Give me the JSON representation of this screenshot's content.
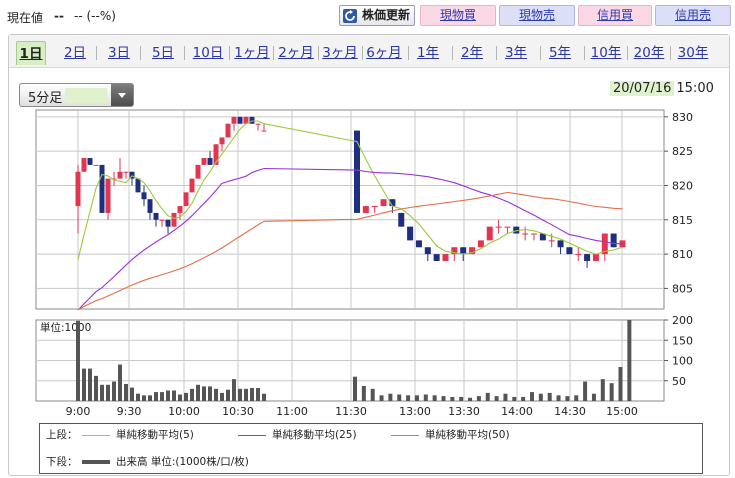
{
  "header": {
    "price_label": "現在値",
    "price_value": "--",
    "price_change": "-- (--%)",
    "buttons": {
      "update": "株価更新",
      "cash_buy": "現物買",
      "cash_sell": "現物売",
      "margin_buy": "信用買",
      "margin_sell": "信用売"
    },
    "colors": {
      "pink_button": "#fbd8e6",
      "blue_button": "#dcdff7",
      "link": "#2a3ab0"
    }
  },
  "tabs": [
    {
      "label": "1日",
      "active": true
    },
    {
      "label": "2日"
    },
    {
      "label": "3日"
    },
    {
      "label": "5日"
    },
    {
      "label": "10日"
    },
    {
      "label": "1ヶ月"
    },
    {
      "label": "2ヶ月"
    },
    {
      "label": "3ヶ月"
    },
    {
      "label": "6ヶ月"
    },
    {
      "label": "1年"
    },
    {
      "label": "2年"
    },
    {
      "label": "3年"
    },
    {
      "label": "5年"
    },
    {
      "label": "10年"
    },
    {
      "label": "20年"
    },
    {
      "label": "30年"
    }
  ],
  "interval_select": {
    "value": "5分足"
  },
  "as_of": {
    "date": "20/07/16",
    "time": "15:00"
  },
  "chart_data": {
    "type": "candlestick",
    "x_labels": [
      "9:00",
      "9:30",
      "10:00",
      "10:30",
      "11:00",
      "11:30",
      "13:00",
      "13:30",
      "14:00",
      "14:30",
      "15:00"
    ],
    "price_axis": {
      "ylim": [
        802,
        831
      ],
      "ticks": [
        805,
        810,
        815,
        820,
        825,
        830
      ]
    },
    "volume_axis": {
      "ylim": [
        0,
        200
      ],
      "ticks": [
        50,
        100,
        150,
        200
      ],
      "label": "単位:1000"
    },
    "colors": {
      "up": "#e3354f",
      "down": "#1f2f80",
      "ma5": "#9cc840",
      "ma25": "#9b30d8",
      "ma50": "#e0704a",
      "volume": "#555555",
      "grid": "#c8c8c8"
    },
    "candles_morning": [
      [
        817,
        822,
        813,
        823
      ],
      [
        822,
        824,
        822,
        824
      ],
      [
        824,
        823,
        823,
        824
      ],
      [
        823,
        823,
        823,
        823
      ],
      [
        823,
        816,
        816,
        823
      ],
      [
        816,
        821,
        815,
        821
      ],
      [
        821,
        821,
        820,
        822
      ],
      [
        821,
        822,
        821,
        824
      ],
      [
        822,
        822,
        821,
        822
      ],
      [
        822,
        821,
        820,
        822
      ],
      [
        821,
        819,
        819,
        821
      ],
      [
        819,
        818,
        817,
        820
      ],
      [
        818,
        816,
        815,
        818
      ],
      [
        816,
        815,
        814,
        816
      ],
      [
        815,
        815,
        814,
        815
      ],
      [
        815,
        814,
        813,
        815
      ],
      [
        814,
        816,
        814,
        816
      ],
      [
        816,
        817,
        815,
        817
      ],
      [
        817,
        819,
        817,
        819
      ],
      [
        819,
        821,
        819,
        821
      ],
      [
        821,
        823,
        821,
        823
      ],
      [
        823,
        824,
        823,
        824
      ],
      [
        824,
        823,
        823,
        825
      ],
      [
        823,
        826,
        823,
        826
      ],
      [
        826,
        827,
        825,
        827
      ],
      [
        827,
        829,
        827,
        829
      ],
      [
        829,
        830,
        828,
        830
      ],
      [
        830,
        829,
        829,
        830
      ],
      [
        829,
        830,
        829,
        830
      ],
      [
        830,
        829,
        829,
        830
      ],
      [
        829,
        829,
        828,
        829
      ],
      [
        828,
        828,
        828,
        829
      ]
    ],
    "candles_afternoon": [
      [
        828,
        816,
        816,
        828
      ],
      [
        816,
        817,
        816,
        817
      ],
      [
        817,
        817,
        816,
        817
      ],
      [
        817,
        818,
        817,
        818
      ],
      [
        818,
        817,
        816,
        818
      ],
      [
        816,
        814,
        814,
        816
      ],
      [
        814,
        812,
        812,
        814
      ],
      [
        812,
        811,
        811,
        812
      ],
      [
        811,
        810,
        809,
        811
      ],
      [
        810,
        809,
        809,
        810
      ],
      [
        809,
        810,
        809,
        810
      ],
      [
        810,
        811,
        809,
        811
      ],
      [
        811,
        810,
        809,
        811
      ],
      [
        810,
        811,
        810,
        811
      ],
      [
        811,
        812,
        811,
        812
      ],
      [
        812,
        814,
        812,
        814
      ],
      [
        814,
        814,
        813,
        815
      ],
      [
        814,
        814,
        813,
        814
      ],
      [
        814,
        813,
        813,
        814
      ],
      [
        813,
        813,
        812,
        814
      ],
      [
        813,
        813,
        812,
        813
      ],
      [
        813,
        812,
        812,
        813
      ],
      [
        812,
        812,
        811,
        813
      ],
      [
        812,
        811,
        810,
        812
      ],
      [
        811,
        810,
        810,
        811
      ],
      [
        810,
        810,
        809,
        811
      ],
      [
        810,
        809,
        808,
        810
      ],
      [
        809,
        810,
        809,
        810
      ],
      [
        810,
        813,
        809,
        813
      ],
      [
        813,
        811,
        811,
        813
      ],
      [
        811,
        812,
        811,
        812
      ]
    ],
    "volume_morning": [
      198,
      80,
      80,
      62,
      40,
      40,
      48,
      90,
      42,
      33,
      18,
      14,
      14,
      22,
      22,
      26,
      26,
      16,
      20,
      30,
      40,
      36,
      36,
      30,
      20,
      28,
      54,
      30,
      30,
      32,
      32,
      18
    ],
    "volume_afternoon": [
      60,
      37,
      30,
      14,
      18,
      16,
      14,
      14,
      16,
      14,
      12,
      10,
      10,
      8,
      12,
      20,
      12,
      18,
      10,
      10,
      22,
      18,
      20,
      14,
      12,
      14,
      48,
      18,
      54,
      44,
      84
    ],
    "volume_last_bar": 200,
    "legend": {
      "upper_label": "上段：",
      "ma5": "単純移動平均(5)",
      "ma25": "単純移動平均(25)",
      "ma50": "単純移動平均(50)",
      "lower_label": "下段：",
      "volume": "出来高 単位:(1000株/口/枚)"
    }
  }
}
